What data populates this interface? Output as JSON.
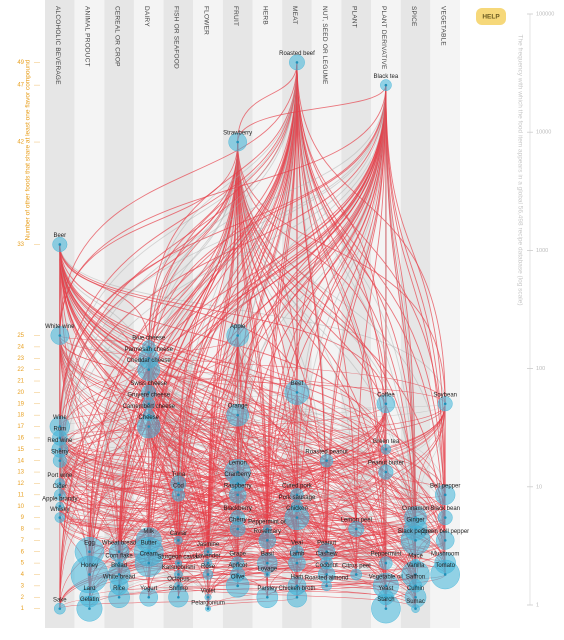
{
  "chart_data": {
    "type": "flavor-network",
    "y_label": "Number of other foods that share at least one flavor compound",
    "y2_label": "The frequency with which the food item appears in a global 56,498 recipe database (log scale)",
    "help": "HELP",
    "categories": [
      "ALCOHOLIC BEVERAGE",
      "ANIMAL PRODUCT",
      "CEREAL OR CROP",
      "DAIRY",
      "FISH OR SEAFOOD",
      "FLOWER",
      "FRUIT",
      "HERB",
      "MEAT",
      "NUT, SEED OR LEGUME",
      "PLANT",
      "PLANT DERIVATIVE",
      "SPICE",
      "VEGETABLE"
    ],
    "ylim": [
      0,
      50
    ],
    "yticks": [
      1,
      2,
      3,
      4,
      5,
      6,
      7,
      8,
      9,
      10,
      11,
      12,
      13,
      14,
      15,
      16,
      17,
      18,
      19,
      20,
      21,
      22,
      23,
      24,
      25,
      33,
      42,
      47,
      49
    ],
    "y2lim": [
      1,
      100000
    ],
    "y2ticks": [
      1,
      10,
      100,
      1000,
      10000,
      100000
    ],
    "y2log": true,
    "node_color": "#3fb4d8",
    "link_color": "#e5404a",
    "nodes": [
      {
        "name": "Sake",
        "category": "ALCOHOLIC BEVERAGE",
        "shared": 1,
        "frequency": 300
      },
      {
        "name": "Beer",
        "category": "ALCOHOLIC BEVERAGE",
        "shared": 33,
        "frequency": 800
      },
      {
        "name": "White wine",
        "category": "ALCOHOLIC BEVERAGE",
        "shared": 25,
        "frequency": 2000
      },
      {
        "name": "Wine",
        "category": "ALCOHOLIC BEVERAGE",
        "shared": 17,
        "frequency": 3000
      },
      {
        "name": "Rum",
        "category": "ALCOHOLIC BEVERAGE",
        "shared": 16,
        "frequency": 900
      },
      {
        "name": "Red wine",
        "category": "ALCOHOLIC BEVERAGE",
        "shared": 15,
        "frequency": 1200
      },
      {
        "name": "Sherry",
        "category": "ALCOHOLIC BEVERAGE",
        "shared": 14,
        "frequency": 600
      },
      {
        "name": "Port wine",
        "category": "ALCOHOLIC BEVERAGE",
        "shared": 12,
        "frequency": 200
      },
      {
        "name": "Cider",
        "category": "ALCOHOLIC BEVERAGE",
        "shared": 11,
        "frequency": 300
      },
      {
        "name": "Apple brandy",
        "category": "ALCOHOLIC BEVERAGE",
        "shared": 10,
        "frequency": 100
      },
      {
        "name": "Whisky",
        "category": "ALCOHOLIC BEVERAGE",
        "shared": 9,
        "frequency": 200
      },
      {
        "name": "Egg",
        "category": "ANIMAL PRODUCT",
        "shared": 6,
        "frequency": 20000
      },
      {
        "name": "Honey",
        "category": "ANIMAL PRODUCT",
        "shared": 4,
        "frequency": 80000
      },
      {
        "name": "Lard",
        "category": "ANIMAL PRODUCT",
        "shared": 2,
        "frequency": 3000
      },
      {
        "name": "Gelatin",
        "category": "ANIMAL PRODUCT",
        "shared": 1,
        "frequency": 10000
      },
      {
        "name": "Wheat bread",
        "category": "CEREAL OR CROP",
        "shared": 6,
        "frequency": 3000
      },
      {
        "name": "Corn flake",
        "category": "CEREAL OR CROP",
        "shared": 5,
        "frequency": 100
      },
      {
        "name": "Bread",
        "category": "CEREAL OR CROP",
        "shared": 4,
        "frequency": 5000
      },
      {
        "name": "White bread",
        "category": "CEREAL OR CROP",
        "shared": 3,
        "frequency": 2000
      },
      {
        "name": "Rice",
        "category": "CEREAL OR CROP",
        "shared": 2,
        "frequency": 4000
      },
      {
        "name": "Milk",
        "category": "DAIRY",
        "shared": 7,
        "frequency": 10000
      },
      {
        "name": "Butter",
        "category": "DAIRY",
        "shared": 6,
        "frequency": 20000
      },
      {
        "name": "Cream",
        "category": "DAIRY",
        "shared": 5,
        "frequency": 15000
      },
      {
        "name": "Yogurt",
        "category": "DAIRY",
        "shared": 2,
        "frequency": 2000
      },
      {
        "name": "Blue cheese",
        "category": "DAIRY",
        "shared": 24,
        "frequency": 500
      },
      {
        "name": "Parmesan cheese",
        "category": "DAIRY",
        "shared": 23,
        "frequency": 3000
      },
      {
        "name": "Cheddar cheese",
        "category": "DAIRY",
        "shared": 22,
        "frequency": 5000
      },
      {
        "name": "Swiss cheese",
        "category": "DAIRY",
        "shared": 20,
        "frequency": 800
      },
      {
        "name": "Gruyere cheese",
        "category": "DAIRY",
        "shared": 19,
        "frequency": 400
      },
      {
        "name": "Camembert cheese",
        "category": "DAIRY",
        "shared": 18,
        "frequency": 300
      },
      {
        "name": "Cheese",
        "category": "DAIRY",
        "shared": 17,
        "frequency": 6000
      },
      {
        "name": "Tuna",
        "category": "FISH OR SEAFOOD",
        "shared": 12,
        "frequency": 1000
      },
      {
        "name": "Cod",
        "category": "FISH OR SEAFOOD",
        "shared": 11,
        "frequency": 500
      },
      {
        "name": "Caviar",
        "category": "FISH OR SEAFOOD",
        "shared": 7,
        "frequency": 100
      },
      {
        "name": "Sturgeon caviar",
        "category": "FISH OR SEAFOOD",
        "shared": 5,
        "frequency": 50
      },
      {
        "name": "Katsuobushi",
        "category": "FISH OR SEAFOOD",
        "shared": 4,
        "frequency": 100
      },
      {
        "name": "Octopus",
        "category": "FISH OR SEAFOOD",
        "shared": 3,
        "frequency": 100
      },
      {
        "name": "Shrimp",
        "category": "FISH OR SEAFOOD",
        "shared": 2,
        "frequency": 3000
      },
      {
        "name": "Jasmine",
        "category": "FLOWER",
        "shared": 6,
        "frequency": 100
      },
      {
        "name": "Lavender",
        "category": "FLOWER",
        "shared": 5,
        "frequency": 100
      },
      {
        "name": "Rose",
        "category": "FLOWER",
        "shared": 4,
        "frequency": 200
      },
      {
        "name": "Violet",
        "category": "FLOWER",
        "shared": 2,
        "frequency": 50
      },
      {
        "name": "Pelargonium",
        "category": "FLOWER",
        "shared": 1,
        "frequency": 30
      },
      {
        "name": "Strawberry",
        "category": "FRUIT",
        "shared": 42,
        "frequency": 2000
      },
      {
        "name": "Apple",
        "category": "FRUIT",
        "shared": 25,
        "frequency": 5000
      },
      {
        "name": "Orange",
        "category": "FRUIT",
        "shared": 18,
        "frequency": 5000
      },
      {
        "name": "Lemon",
        "category": "FRUIT",
        "shared": 13,
        "frequency": 10000
      },
      {
        "name": "Cranberry",
        "category": "FRUIT",
        "shared": 12,
        "frequency": 1000
      },
      {
        "name": "Raspberry",
        "category": "FRUIT",
        "shared": 11,
        "frequency": 1500
      },
      {
        "name": "Blackberry",
        "category": "FRUIT",
        "shared": 9,
        "frequency": 800
      },
      {
        "name": "Cherry",
        "category": "FRUIT",
        "shared": 8,
        "frequency": 1000
      },
      {
        "name": "Grape",
        "category": "FRUIT",
        "shared": 5,
        "frequency": 500
      },
      {
        "name": "Apricot",
        "category": "FRUIT",
        "shared": 4,
        "frequency": 800
      },
      {
        "name": "Olive",
        "category": "FRUIT",
        "shared": 3,
        "frequency": 6000
      },
      {
        "name": "Peppermint oil",
        "category": "HERB",
        "shared": 8,
        "frequency": 100
      },
      {
        "name": "Rosemary",
        "category": "HERB",
        "shared": 7,
        "frequency": 1500
      },
      {
        "name": "Basil",
        "category": "HERB",
        "shared": 5,
        "frequency": 3000
      },
      {
        "name": "Lovage",
        "category": "HERB",
        "shared": 4,
        "frequency": 30
      },
      {
        "name": "Parsley",
        "category": "HERB",
        "shared": 2,
        "frequency": 4000
      },
      {
        "name": "Roasted beef",
        "category": "MEAT",
        "shared": 49,
        "frequency": 1000
      },
      {
        "name": "Beef",
        "category": "MEAT",
        "shared": 20,
        "frequency": 8000
      },
      {
        "name": "Cured pork",
        "category": "MEAT",
        "shared": 11,
        "frequency": 500
      },
      {
        "name": "Pork sausage",
        "category": "MEAT",
        "shared": 10,
        "frequency": 300
      },
      {
        "name": "Chicken",
        "category": "MEAT",
        "shared": 9,
        "frequency": 8000
      },
      {
        "name": "Veal",
        "category": "MEAT",
        "shared": 6,
        "frequency": 500
      },
      {
        "name": "Lamb",
        "category": "MEAT",
        "shared": 5,
        "frequency": 1500
      },
      {
        "name": "Ham",
        "category": "MEAT",
        "shared": 3,
        "frequency": 2000
      },
      {
        "name": "Chicken broth",
        "category": "MEAT",
        "shared": 2,
        "frequency": 3000
      },
      {
        "name": "Roasted peanut",
        "category": "NUT, SEED OR LEGUME",
        "shared": 14,
        "frequency": 500
      },
      {
        "name": "Peanut",
        "category": "NUT, SEED OR LEGUME",
        "shared": 6,
        "frequency": 1500
      },
      {
        "name": "Cashew",
        "category": "NUT, SEED OR LEGUME",
        "shared": 5,
        "frequency": 400
      },
      {
        "name": "Coconut",
        "category": "NUT, SEED OR LEGUME",
        "shared": 4,
        "frequency": 1500
      },
      {
        "name": "Roasted almond",
        "category": "NUT, SEED OR LEGUME",
        "shared": 3,
        "frequency": 200
      },
      {
        "name": "Lemon peel",
        "category": "PLANT",
        "shared": 8,
        "frequency": 1000
      },
      {
        "name": "Citrus peel",
        "category": "PLANT",
        "shared": 4,
        "frequency": 300
      },
      {
        "name": "Black tea",
        "category": "PLANT DERIVATIVE",
        "shared": 47,
        "frequency": 300
      },
      {
        "name": "Coffee",
        "category": "PLANT DERIVATIVE",
        "shared": 19,
        "frequency": 2000
      },
      {
        "name": "Green tea",
        "category": "PLANT DERIVATIVE",
        "shared": 15,
        "frequency": 200
      },
      {
        "name": "Peanut butter",
        "category": "PLANT DERIVATIVE",
        "shared": 13,
        "frequency": 800
      },
      {
        "name": "Peppermint",
        "category": "PLANT DERIVATIVE",
        "shared": 5,
        "frequency": 500
      },
      {
        "name": "Vegetable oil",
        "category": "PLANT DERIVATIVE",
        "shared": 3,
        "frequency": 10000
      },
      {
        "name": "Yeast",
        "category": "PLANT DERIVATIVE",
        "shared": 2,
        "frequency": 1000
      },
      {
        "name": "Starch",
        "category": "PLANT DERIVATIVE",
        "shared": 1,
        "frequency": 20000
      },
      {
        "name": "Cinnamon",
        "category": "SPICE",
        "shared": 9,
        "frequency": 5000
      },
      {
        "name": "Ginger",
        "category": "SPICE",
        "shared": 8,
        "frequency": 6000
      },
      {
        "name": "Black pepper",
        "category": "SPICE",
        "shared": 7,
        "frequency": 20000
      },
      {
        "name": "Mace",
        "category": "SPICE",
        "shared": 5,
        "frequency": 100
      },
      {
        "name": "Vanilla",
        "category": "SPICE",
        "shared": 4,
        "frequency": 15000
      },
      {
        "name": "Saffron",
        "category": "SPICE",
        "shared": 3,
        "frequency": 500
      },
      {
        "name": "Cumin",
        "category": "SPICE",
        "shared": 2,
        "frequency": 4000
      },
      {
        "name": "Sumac",
        "category": "SPICE",
        "shared": 1,
        "frequency": 100
      },
      {
        "name": "Soybean",
        "category": "VEGETABLE",
        "shared": 19,
        "frequency": 800
      },
      {
        "name": "Bell pepper",
        "category": "VEGETABLE",
        "shared": 11,
        "frequency": 3000
      },
      {
        "name": "Black bean",
        "category": "VEGETABLE",
        "shared": 9,
        "frequency": 800
      },
      {
        "name": "Green bell pepper",
        "category": "VEGETABLE",
        "shared": 7,
        "frequency": 2000
      },
      {
        "name": "Mushroom",
        "category": "VEGETABLE",
        "shared": 5,
        "frequency": 4000
      },
      {
        "name": "Tomato",
        "category": "VEGETABLE",
        "shared": 4,
        "frequency": 20000
      }
    ]
  }
}
